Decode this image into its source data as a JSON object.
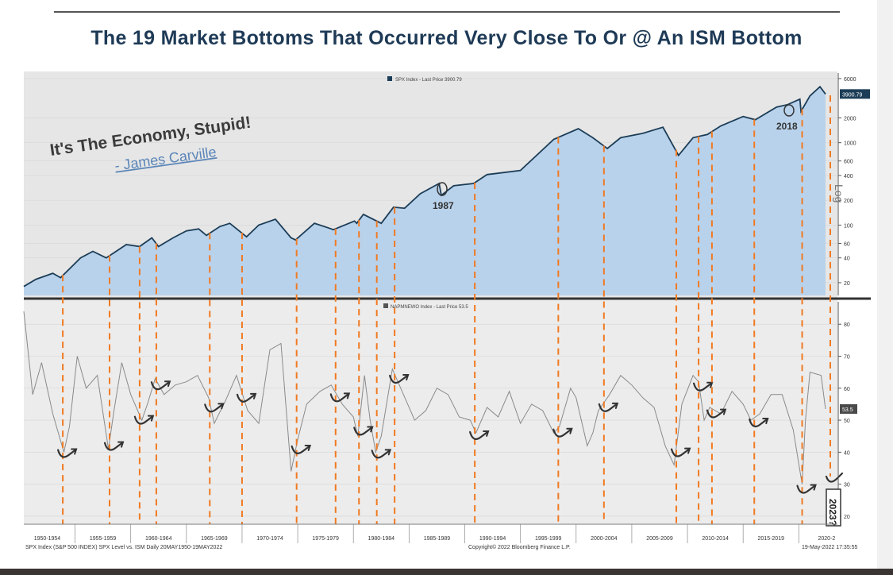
{
  "title": "The 19 Market Bottoms That Occurred Very Close To Or @ An ISM Bottom",
  "quote": {
    "text": "It's The Economy, Stupid!",
    "author": "- James Carville"
  },
  "annotations": {
    "y1987": "1987",
    "y2018": "2018",
    "y2023": "2023?",
    "log": "Log"
  },
  "footer": {
    "left": "SPX Index (S&P 500 INDEX) SPX Level vs. ISM  Daily 20MAY1950-19MAY2022",
    "center": "Copyright© 2022 Bloomberg Finance L.P.",
    "right": "19-May-2022 17:35:55"
  },
  "colors": {
    "area_fill": "#b9d2ec",
    "spx_line": "#1c3d57",
    "ism_line": "#8a8a8a",
    "bottom_marker": "#f07a22",
    "arrow": "#333333",
    "plot_bg": "#e8e8e8"
  },
  "chart_data": [
    {
      "type": "area",
      "legend": "SPX Index - Last Price 3900.79",
      "last_value_label": "3900.79",
      "last_value": 3900.79,
      "scale": "log",
      "ylim": [
        14,
        7000
      ],
      "xlim": [
        1950.4,
        2022.4
      ],
      "y_ticks": [
        20,
        40,
        60,
        100,
        200,
        400,
        600,
        1000,
        2000,
        6000
      ],
      "y_tick_labels": [
        "20",
        "40",
        "60",
        "100",
        "200",
        "400",
        "600",
        "1000",
        "2000",
        "6000"
      ],
      "series": [
        {
          "x": [
            1950.4,
            1951.5,
            1953.0,
            1953.7,
            1955.5,
            1956.6,
            1957.8,
            1959.6,
            1960.8,
            1961.9,
            1962.5,
            1963.8,
            1965.0,
            1966.1,
            1966.8,
            1968.0,
            1968.9,
            1970.4,
            1971.5,
            1973.0,
            1974.4,
            1974.8,
            1976.5,
            1977.8,
            1978.2,
            1980.1,
            1980.3,
            1980.9,
            1982.5,
            1983.6,
            1984.6,
            1986.0,
            1987.7,
            1987.9,
            1989.0,
            1990.8,
            1992.0,
            1995.0,
            1998.0,
            2000.2,
            2001.5,
            2002.8,
            2004.0,
            2006.0,
            2007.8,
            2009.2,
            2010.5,
            2011.8,
            2013.0,
            2015.0,
            2016.1,
            2018.0,
            2019.0,
            2020.1,
            2020.2,
            2021.0,
            2021.9,
            2022.4
          ],
          "y": [
            18,
            22,
            26,
            23,
            40,
            48,
            40,
            58,
            55,
            70,
            55,
            70,
            85,
            90,
            75,
            96,
            105,
            72,
            100,
            118,
            70,
            66,
            105,
            92,
            88,
            112,
            105,
            135,
            105,
            165,
            160,
            240,
            320,
            230,
            300,
            320,
            410,
            460,
            1100,
            1480,
            1150,
            850,
            1150,
            1300,
            1540,
            700,
            1150,
            1260,
            1600,
            2080,
            1900,
            2700,
            2900,
            3380,
            2400,
            3700,
            4780,
            3900
          ]
        }
      ]
    },
    {
      "type": "line",
      "legend": "NAPMNEWO Index - Last Price 53.5",
      "last_value_label": "53.5",
      "last_value": 53.5,
      "ylim": [
        18,
        87
      ],
      "xlim": [
        1950.4,
        2022.4
      ],
      "y_ticks": [
        20,
        30,
        40,
        50,
        60,
        70,
        80
      ],
      "y_tick_labels": [
        "20",
        "30",
        "40",
        "50",
        "60",
        "70",
        "80"
      ],
      "x_tick_labels": [
        "1950-1954",
        "1955-1959",
        "1960-1964",
        "1965-1969",
        "1970-1974",
        "1975-1979",
        "1980-1984",
        "1985-1989",
        "1990-1994",
        "1995-1999",
        "2000-2004",
        "2005-2009",
        "2010-2014",
        "2015-2019",
        "2020-2"
      ],
      "series": [
        {
          "x": [
            1950.4,
            1951.2,
            1952.0,
            1953.0,
            1954.0,
            1954.5,
            1955.2,
            1956.0,
            1957.0,
            1958.0,
            1958.5,
            1959.2,
            1960.0,
            1961.0,
            1961.5,
            1962.2,
            1963.0,
            1964.0,
            1965.0,
            1966.0,
            1967.0,
            1967.5,
            1968.5,
            1969.5,
            1970.5,
            1971.5,
            1972.5,
            1973.5,
            1974.4,
            1975.0,
            1975.8,
            1977.0,
            1978.0,
            1979.0,
            1980.0,
            1980.4,
            1981.0,
            1981.5,
            1982.0,
            1982.5,
            1983.5,
            1984.5,
            1985.5,
            1986.5,
            1987.5,
            1988.5,
            1989.5,
            1990.5,
            1991.0,
            1992.0,
            1993.0,
            1994.0,
            1995.0,
            1996.0,
            1997.0,
            1998.0,
            1998.5,
            1999.5,
            2000.0,
            2001.0,
            2001.5,
            2002.0,
            2003.0,
            2004.0,
            2005.0,
            2006.0,
            2007.0,
            2008.0,
            2008.8,
            2009.5,
            2010.5,
            2011.0,
            2011.5,
            2012.0,
            2013.0,
            2014.0,
            2015.0,
            2015.7,
            2016.5,
            2017.5,
            2018.5,
            2019.5,
            2020.3,
            2020.6,
            2021.0,
            2022.0,
            2022.4
          ],
          "y": [
            84,
            58,
            68,
            52,
            40,
            48,
            70,
            60,
            64,
            41,
            53,
            68,
            58,
            50,
            55,
            63,
            58,
            61,
            62,
            64,
            57,
            49,
            56,
            64,
            53,
            49,
            72,
            74,
            34,
            44,
            55,
            59,
            61,
            55,
            51,
            45,
            64,
            50,
            40,
            45,
            66,
            58,
            50,
            53,
            60,
            58,
            51,
            50,
            46,
            54,
            51,
            59,
            49,
            55,
            53,
            46,
            48,
            60,
            57,
            42,
            46,
            53,
            58,
            64,
            61,
            57,
            54,
            42,
            36,
            55,
            64,
            62,
            50,
            54,
            52,
            59,
            55,
            50,
            52,
            58,
            58,
            47,
            30,
            50,
            65,
            64,
            53.5
          ]
        }
      ],
      "bottom_years": [
        1953.9,
        1958.1,
        1960.8,
        1962.3,
        1967.1,
        1970.0,
        1974.9,
        1978.4,
        1980.5,
        1982.1,
        1983.7,
        1990.9,
        1998.4,
        2002.5,
        2009.0,
        2011.0,
        2012.2,
        2016.0,
        2020.3
      ]
    }
  ]
}
